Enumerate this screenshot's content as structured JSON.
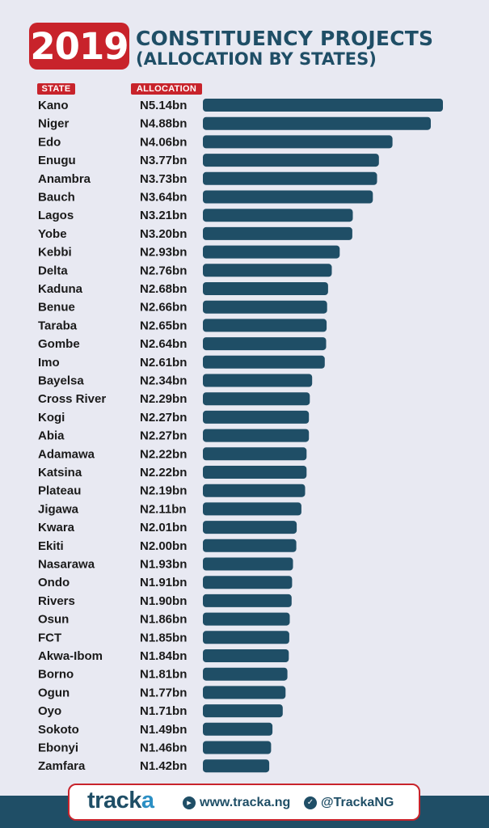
{
  "header": {
    "year": "2019",
    "title_line1": "CONSTITUENCY PROJECTS",
    "title_line2": "(ALLOCATION BY STATES)"
  },
  "columns": {
    "state": "STATE",
    "allocation": "ALLOCATION"
  },
  "colors": {
    "accent_red": "#c8232b",
    "bar": "#1f4e66",
    "title": "#1f4e66",
    "background": "#e8e9f2",
    "logo_light": "#2b8fc4"
  },
  "chart_data": {
    "type": "bar",
    "orientation": "horizontal",
    "title": "2019 CONSTITUENCY PROJECTS (ALLOCATION BY STATES)",
    "xlabel": "ALLOCATION",
    "ylabel": "STATE",
    "unit": "N bn",
    "xlim": [
      0,
      5.14
    ],
    "categories": [
      "Kano",
      "Niger",
      "Edo",
      "Enugu",
      "Anambra",
      "Bauch",
      "Lagos",
      "Yobe",
      "Kebbi",
      "Delta",
      "Kaduna",
      "Benue",
      "Taraba",
      "Gombe",
      "Imo",
      "Bayelsa",
      "Cross River",
      "Kogi",
      "Abia",
      "Adamawa",
      "Katsina",
      "Plateau",
      "Jigawa",
      "Kwara",
      "Ekiti",
      "Nasarawa",
      "Ondo",
      "Rivers",
      "Osun",
      "FCT",
      "Akwa-Ibom",
      "Borno",
      "Ogun",
      "Oyo",
      "Sokoto",
      "Ebonyi",
      "Zamfara"
    ],
    "values": [
      5.14,
      4.88,
      4.06,
      3.77,
      3.73,
      3.64,
      3.21,
      3.2,
      2.93,
      2.76,
      2.68,
      2.66,
      2.65,
      2.64,
      2.61,
      2.34,
      2.29,
      2.27,
      2.27,
      2.22,
      2.22,
      2.19,
      2.11,
      2.01,
      2.0,
      1.93,
      1.91,
      1.9,
      1.86,
      1.85,
      1.84,
      1.81,
      1.77,
      1.71,
      1.49,
      1.46,
      1.42
    ],
    "labels": [
      "N5.14bn",
      "N4.88bn",
      "N4.06bn",
      "N3.77bn",
      "N3.73bn",
      "N3.64bn",
      "N3.21bn",
      "N3.20bn",
      "N2.93bn",
      "N2.76bn",
      "N2.68bn",
      "N2.66bn",
      "N2.65bn",
      "N2.64bn",
      "N2.61bn",
      "N2.34bn",
      "N2.29bn",
      "N2.27bn",
      "N2.27bn",
      "N2.22bn",
      "N2.22bn",
      "N2.19bn",
      "N2.11bn",
      "N2.01bn",
      "N2.00bn",
      "N1.93bn",
      "N1.91bn",
      "N1.90bn",
      "N1.86bn",
      "N1.85bn",
      "N1.84bn",
      "N1.81bn",
      "N1.77bn",
      "N1.71bn",
      "N1.49bn",
      "N1.46bn",
      "N1.42bn"
    ]
  },
  "footer": {
    "logo_part1": "track",
    "logo_part2": "a",
    "website_icon": "globe-cursor-icon",
    "website": "www.tracka.ng",
    "twitter_icon": "twitter-icon",
    "twitter": "@TrackaNG"
  }
}
